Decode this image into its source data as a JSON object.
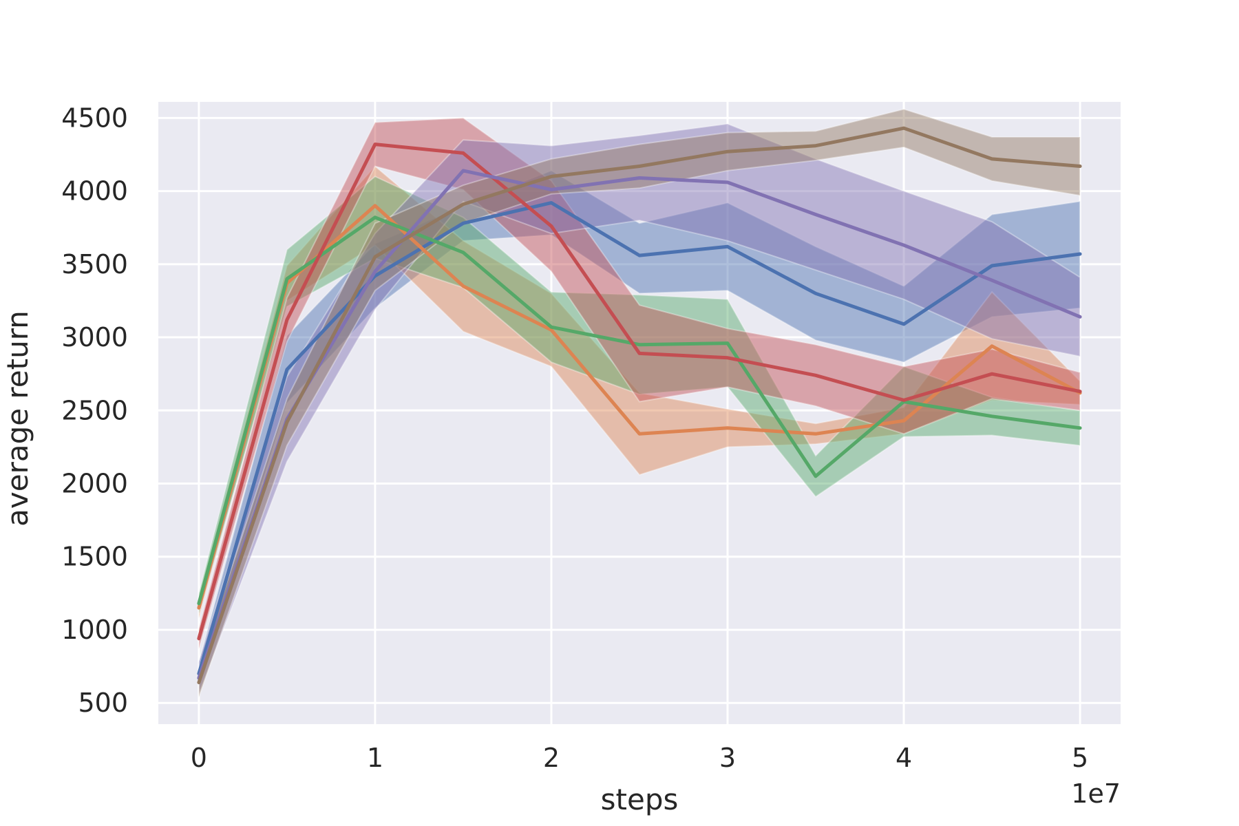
{
  "chart_data": {
    "type": "line",
    "title": "",
    "xlabel": "steps",
    "ylabel": "average return",
    "x_offset_label": "1e7",
    "x": [
      0,
      0.5,
      1.0,
      1.5,
      2.0,
      2.5,
      3.0,
      3.5,
      4.0,
      4.5,
      5.0
    ],
    "xlim": [
      -0.23,
      5.23
    ],
    "ylim": [
      355,
      4610
    ],
    "xticks": [
      0,
      1,
      2,
      3,
      4,
      5
    ],
    "xtick_labels": [
      "0",
      "1",
      "2",
      "3",
      "4",
      "5"
    ],
    "yticks": [
      500,
      1000,
      1500,
      2000,
      2500,
      3000,
      3500,
      4000,
      4500
    ],
    "ytick_labels": [
      "500",
      "1000",
      "1500",
      "2000",
      "2500",
      "3000",
      "3500",
      "4000",
      "4500"
    ],
    "grid": true,
    "background": "#eaeaf2",
    "series": [
      {
        "color": "#4c72b0",
        "values": [
          700,
          2780,
          3420,
          3780,
          3920,
          3560,
          3620,
          3300,
          3090,
          3490,
          3570
        ],
        "lower": [
          620,
          2550,
          3200,
          3660,
          3700,
          3300,
          3320,
          2980,
          2830,
          3140,
          3200
        ],
        "upper": [
          780,
          3010,
          3640,
          3900,
          4140,
          3780,
          3920,
          3620,
          3350,
          3840,
          3930
        ]
      },
      {
        "color": "#dd8452",
        "values": [
          1150,
          3370,
          3900,
          3350,
          3050,
          2340,
          2380,
          2340,
          2430,
          2940,
          2620
        ],
        "lower": [
          1080,
          3250,
          3630,
          3040,
          2800,
          2060,
          2250,
          2270,
          2340,
          2570,
          2540
        ],
        "upper": [
          1220,
          3490,
          4170,
          3660,
          3300,
          2620,
          2510,
          2410,
          2520,
          3310,
          2700
        ]
      },
      {
        "color": "#55a868",
        "values": [
          1180,
          3400,
          3820,
          3580,
          3070,
          2950,
          2960,
          2050,
          2560,
          2460,
          2380
        ],
        "lower": [
          1110,
          3210,
          3540,
          3340,
          2830,
          2610,
          2660,
          1910,
          2320,
          2330,
          2260
        ],
        "upper": [
          1250,
          3600,
          4100,
          3820,
          3310,
          3290,
          3260,
          2190,
          2800,
          2590,
          2500
        ]
      },
      {
        "color": "#c44e52",
        "values": [
          940,
          3120,
          4320,
          4260,
          3760,
          2890,
          2860,
          2740,
          2570,
          2750,
          2630
        ],
        "lower": [
          870,
          2970,
          4170,
          4010,
          3450,
          2560,
          2660,
          2530,
          2340,
          2580,
          2500
        ],
        "upper": [
          1010,
          3270,
          4470,
          4500,
          4070,
          3220,
          3060,
          2950,
          2800,
          2920,
          2760
        ]
      },
      {
        "color": "#8172b2",
        "values": [
          670,
          2440,
          3450,
          4140,
          4010,
          4090,
          4060,
          3840,
          3630,
          3390,
          3140
        ],
        "lower": [
          560,
          2150,
          3190,
          3930,
          3710,
          3800,
          3660,
          3460,
          3260,
          2990,
          2870
        ],
        "upper": [
          780,
          2730,
          3710,
          4350,
          4310,
          4380,
          4460,
          4220,
          4000,
          3790,
          3410
        ]
      },
      {
        "color": "#937860",
        "values": [
          640,
          2420,
          3550,
          3910,
          4100,
          4170,
          4270,
          4310,
          4430,
          4220,
          4170
        ],
        "lower": [
          540,
          2260,
          3320,
          3780,
          3980,
          4020,
          4140,
          4210,
          4300,
          4070,
          3970
        ],
        "upper": [
          740,
          2580,
          3780,
          4040,
          4220,
          4320,
          4400,
          4410,
          4560,
          4370,
          4370
        ]
      }
    ]
  }
}
